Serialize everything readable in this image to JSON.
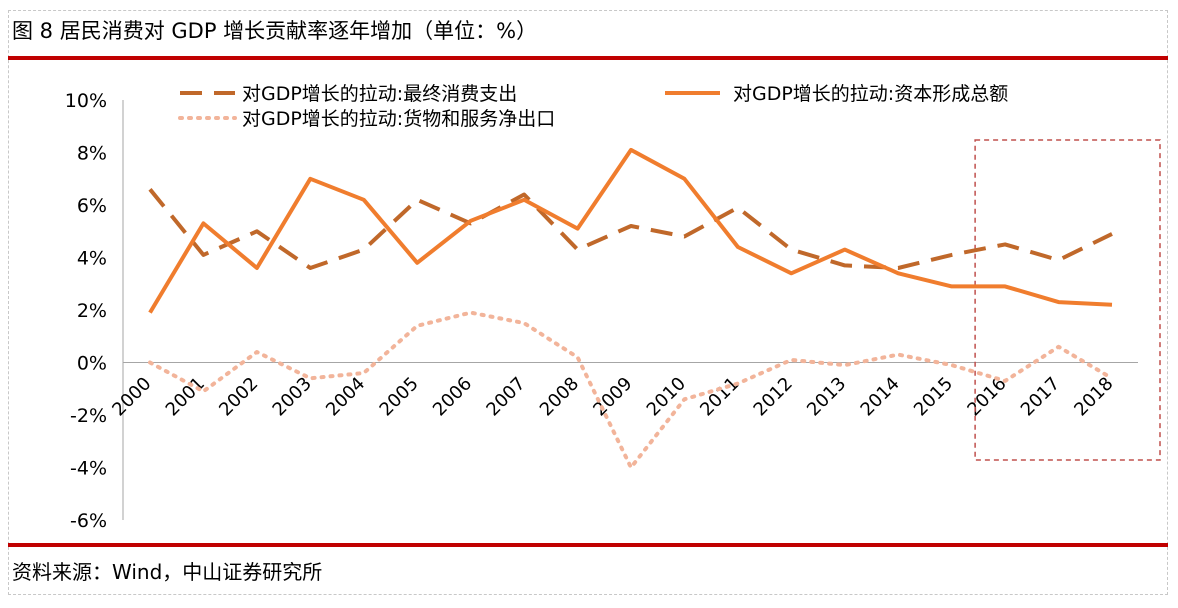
{
  "title": "图 8 居民消费对 GDP 增长贡献率逐年增加（单位：%）",
  "source": "资料来源：Wind，中山证券研究所",
  "colors": {
    "accent_red": "#c00000",
    "series_consumption": "#c0682a",
    "series_capital": "#f07d2e",
    "series_net_exports": "#f2b49a",
    "highlight_box": "#c0504d"
  },
  "chart_data": {
    "type": "line",
    "x": [
      "2000",
      "2001",
      "2002",
      "2003",
      "2004",
      "2005",
      "2006",
      "2007",
      "2008",
      "2009",
      "2010",
      "2011",
      "2012",
      "2013",
      "2014",
      "2015",
      "2016",
      "2017",
      "2018"
    ],
    "y_ticks": [
      "10%",
      "8%",
      "6%",
      "4%",
      "2%",
      "0%",
      "-2%",
      "-4%",
      "-6%"
    ],
    "ylim": [
      -6,
      10
    ],
    "grid": false,
    "legend_position": "top",
    "highlight_range": [
      "2016",
      "2018"
    ],
    "series": [
      {
        "name": "对GDP增长的拉动:最终消费支出",
        "style": "dashed",
        "values": [
          6.6,
          4.1,
          5.0,
          3.6,
          4.3,
          6.2,
          5.3,
          6.4,
          4.3,
          5.2,
          4.8,
          5.9,
          4.3,
          3.7,
          3.6,
          4.1,
          4.5,
          3.9,
          4.9
        ]
      },
      {
        "name": "对GDP增长的拉动:资本形成总额",
        "style": "solid",
        "values": [
          1.9,
          5.3,
          3.6,
          7.0,
          6.2,
          3.8,
          5.4,
          6.2,
          5.1,
          8.1,
          7.0,
          4.4,
          3.4,
          4.3,
          3.4,
          2.9,
          2.9,
          2.3,
          2.2
        ]
      },
      {
        "name": "对GDP增长的拉动:货物和服务净出口",
        "style": "dotted",
        "values": [
          0.0,
          -1.1,
          0.4,
          -0.6,
          -0.4,
          1.4,
          1.9,
          1.5,
          0.2,
          -4.0,
          -1.4,
          -0.8,
          0.1,
          -0.1,
          0.3,
          -0.1,
          -0.7,
          0.6,
          -0.6
        ]
      }
    ]
  }
}
